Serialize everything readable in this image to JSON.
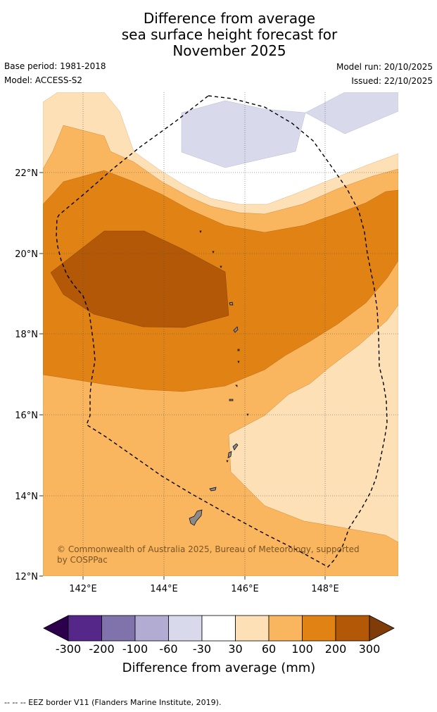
{
  "title": {
    "line1": "Difference from average",
    "line2": "sea surface height forecast for",
    "line3": "November 2025"
  },
  "meta": {
    "base_period": "Base period: 1981-2018",
    "model": "Model: ACCESS-S2",
    "model_run": "Model run: 20/10/2025",
    "issued": "Issued: 22/10/2025"
  },
  "map": {
    "lat_labels": [
      "22°N",
      "20°N",
      "18°N",
      "16°N",
      "14°N",
      "12°N"
    ],
    "lon_labels": [
      "142°E",
      "144°E",
      "146°E",
      "148°E"
    ],
    "copyright_line1": "© Commonwealth of Australia 2025, Bureau of Meteorology, supported",
    "copyright_line2": "by COSPPac"
  },
  "colorbar": {
    "label": "Difference from average (mm)",
    "ticks": [
      "-300",
      "-200",
      "-100",
      "-60",
      "-30",
      "30",
      "60",
      "100",
      "200",
      "300"
    ],
    "colors": {
      "under": "#2d004b",
      "bins": [
        "#542788",
        "#8073ac",
        "#b2abd2",
        "#d8daeb",
        "#ffffff",
        "#fee0b6",
        "#f9b65f",
        "#e08214",
        "#b35806"
      ],
      "over": "#7f3b08"
    }
  },
  "footer": "-- -- -- EEZ border V11 (Flanders Marine Institute, 2019)."
}
